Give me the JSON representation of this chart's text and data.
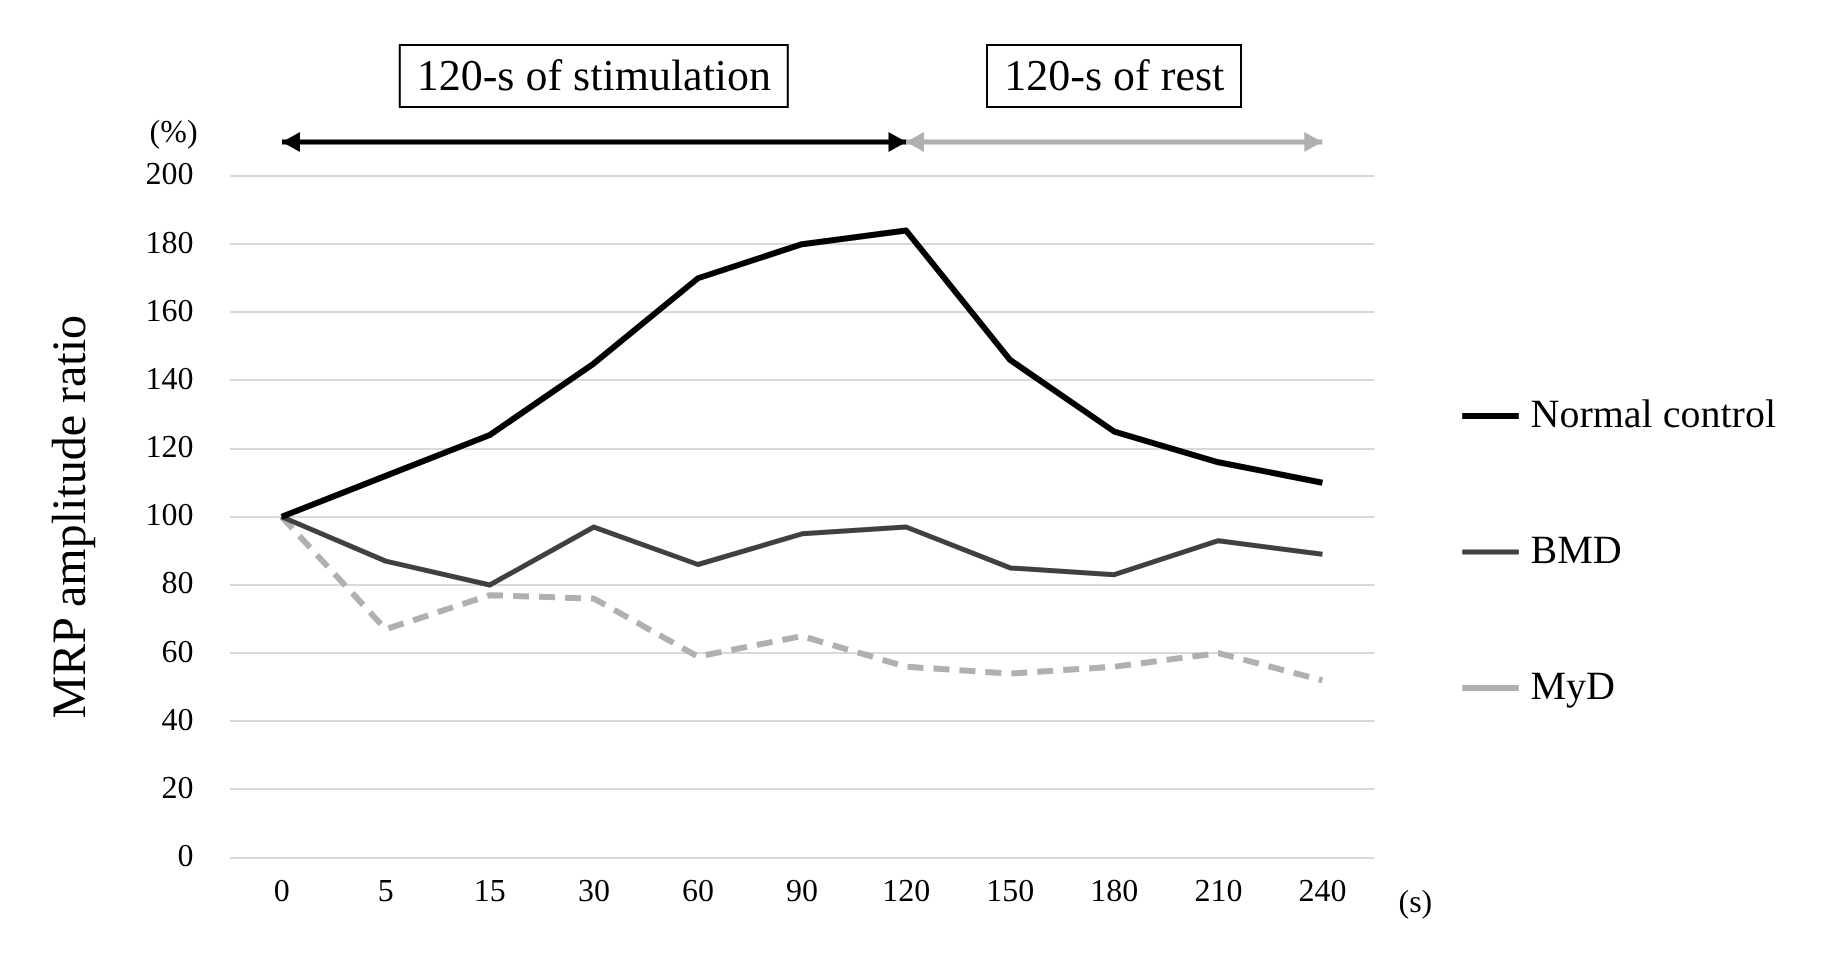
{
  "chart_data": {
    "type": "line",
    "ylabel": "MRP amplitude ratio",
    "xlabel": "(s)",
    "categories": [
      "0",
      "5",
      "15",
      "30",
      "60",
      "90",
      "120",
      "150",
      "180",
      "210",
      "240"
    ],
    "series": [
      {
        "name": "Normal control",
        "color": "#000000",
        "values": [
          100,
          112,
          124,
          145,
          170,
          180,
          184,
          146,
          125,
          116,
          110
        ]
      },
      {
        "name": "BMD",
        "color": "#404040",
        "values": [
          100,
          87,
          80,
          97,
          86,
          95,
          97,
          85,
          83,
          93,
          89
        ]
      },
      {
        "name": "MyD",
        "color": "#b0b0b0",
        "line_style": "dashed",
        "values": [
          100,
          67,
          77,
          76,
          59,
          65,
          56,
          54,
          56,
          60,
          52
        ]
      }
    ],
    "ylim": [
      0,
      200
    ],
    "yticks": [
      0,
      20,
      40,
      60,
      80,
      100,
      120,
      140,
      160,
      180,
      200
    ],
    "grid": "y",
    "legend": "right",
    "marker": "none",
    "annotations": [
      "(%)",
      "120-s of stimulation",
      "120-s of rest"
    ]
  }
}
